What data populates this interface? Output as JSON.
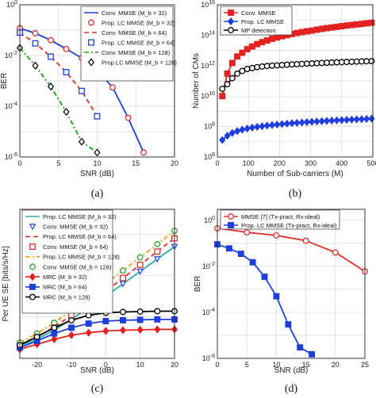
{
  "chart_data": [
    {
      "id": "a",
      "type": "line",
      "caption": "(a)",
      "xlabel": "SNR (dB)",
      "ylabel": "BER",
      "yscale": "log",
      "xlim": [
        0,
        20
      ],
      "ylim": [
        1e-06,
        1
      ],
      "xticks": [
        "0",
        "5",
        "10",
        "15",
        "20"
      ],
      "yticks": [
        "10^-6",
        "10^-4",
        "10^-2",
        "10^0"
      ],
      "grid": true,
      "legend_position": "top-right",
      "series": [
        {
          "name": "Conv. MMSE (M_b = 32)",
          "style": "line",
          "color": "#1f3fdc",
          "x": [
            0,
            2,
            4,
            6,
            8,
            10,
            12,
            14,
            16
          ],
          "y": [
            0.12,
            0.075,
            0.04,
            0.018,
            0.008,
            0.0027,
            0.00055,
            3.5e-05,
            1.5e-06
          ]
        },
        {
          "name": "Prop. LC MMSE (M_b = 32)",
          "style": "marker-circle",
          "color": "#e03030",
          "x": [
            0,
            2,
            4,
            6,
            8,
            10,
            12,
            14,
            16
          ],
          "y": [
            0.12,
            0.075,
            0.04,
            0.018,
            0.008,
            0.0027,
            0.00055,
            3.5e-05,
            1.5e-06
          ]
        },
        {
          "name": "Conv. MMSE (M_b = 64)",
          "style": "dash",
          "color": "#e03030",
          "x": [
            0,
            2,
            4,
            6,
            8,
            10
          ],
          "y": [
            0.08,
            0.03,
            0.009,
            0.0022,
            0.0004,
            4e-05
          ]
        },
        {
          "name": "Prop. LC MMSE (M_b = 64)",
          "style": "marker-square",
          "color": "#1f3fdc",
          "x": [
            0,
            2,
            4,
            6,
            8,
            10
          ],
          "y": [
            0.08,
            0.03,
            0.009,
            0.0022,
            0.0004,
            4e-05
          ]
        },
        {
          "name": "Conv. MMSE (M_b = 128)",
          "style": "dashdot",
          "color": "#1a9e1a",
          "x": [
            0,
            2,
            4,
            6,
            8,
            10
          ],
          "y": [
            0.02,
            0.004,
            0.0006,
            6e-05,
            4e-06,
            1.5e-06
          ]
        },
        {
          "name": "Prop.LC MMSE (M_b = 128)",
          "style": "marker-diamond",
          "color": "#000000",
          "x": [
            0,
            2,
            4,
            6,
            8,
            10
          ],
          "y": [
            0.02,
            0.004,
            0.0006,
            6e-05,
            4e-06,
            1.5e-06
          ]
        }
      ]
    },
    {
      "id": "b",
      "type": "line",
      "caption": "(b)",
      "xlabel": "Number of Sub-carriers (M)",
      "ylabel": "Number of CMs",
      "yscale": "log",
      "xlim": [
        0,
        500
      ],
      "ylim": [
        1000000.0,
        1e+16
      ],
      "xticks": [
        "0",
        "100",
        "200",
        "300",
        "400",
        "500"
      ],
      "yticks": [
        "10^6",
        "10^8",
        "10^10",
        "10^12",
        "10^14",
        "10^16"
      ],
      "grid": true,
      "legend_position": "top-left",
      "series": [
        {
          "name": "Conv. MMSE",
          "style": "line-square",
          "color": "#e32222",
          "x": [
            16,
            32,
            48,
            64,
            80,
            96,
            112,
            128,
            144,
            160,
            176,
            192,
            208,
            224,
            240,
            256,
            272,
            288,
            304,
            320,
            336,
            352,
            368,
            384,
            400,
            416,
            432,
            448,
            464,
            480,
            496
          ],
          "y": [
            10000000000.0,
            300000000000.0,
            1500000000000.0,
            4000000000000.0,
            7000000000000.0,
            12000000000000.0,
            18000000000000.0,
            26000000000000.0,
            35000000000000.0,
            45000000000000.0,
            58000000000000.0,
            70000000000000.0,
            85000000000000.0,
            100000000000000.0,
            120000000000000.0,
            140000000000000.0,
            160000000000000.0,
            180000000000000.0,
            200000000000000.0,
            230000000000000.0,
            260000000000000.0,
            290000000000000.0,
            320000000000000.0,
            350000000000000.0,
            390000000000000.0,
            430000000000000.0,
            470000000000000.0,
            510000000000000.0,
            550000000000000.0,
            600000000000000.0,
            660000000000000.0
          ]
        },
        {
          "name": "Prop. LC MMSE",
          "style": "line-diamond",
          "color": "#1f3fdc",
          "x": [
            16,
            32,
            48,
            64,
            80,
            96,
            112,
            128,
            144,
            160,
            176,
            192,
            208,
            224,
            240,
            256,
            272,
            288,
            304,
            320,
            336,
            352,
            368,
            384,
            400,
            416,
            432,
            448,
            464,
            480,
            496
          ],
          "y": [
            13000000.0,
            25000000.0,
            38000000.0,
            50000000.0,
            62000000.0,
            73000000.0,
            85000000.0,
            95000000.0,
            105000000.0,
            115000000.0,
            125000000.0,
            135000000.0,
            145000000.0,
            155000000.0,
            165000000.0,
            175000000.0,
            185000000.0,
            195000000.0,
            205000000.0,
            215000000.0,
            225000000.0,
            235000000.0,
            245000000.0,
            255000000.0,
            265000000.0,
            275000000.0,
            285000000.0,
            295000000.0,
            305000000.0,
            315000000.0,
            330000000.0
          ]
        },
        {
          "name": "MP detection",
          "style": "line-circle",
          "color": "#000000",
          "x": [
            16,
            32,
            48,
            64,
            80,
            96,
            112,
            128,
            144,
            160,
            176,
            192,
            208,
            224,
            240,
            256,
            272,
            288,
            304,
            320,
            336,
            352,
            368,
            384,
            400,
            416,
            432,
            448,
            464,
            480,
            496
          ],
          "y": [
            30000000000.0,
            60000000000.0,
            150000000000.0,
            300000000000.0,
            450000000000.0,
            600000000000.0,
            700000000000.0,
            800000000000.0,
            880000000000.0,
            950000000000.0,
            1000000000000.0,
            1050000000000.0,
            1100000000000.0,
            1150000000000.0,
            1200000000000.0,
            1250000000000.0,
            1300000000000.0,
            1350000000000.0,
            1400000000000.0,
            1450000000000.0,
            1500000000000.0,
            1550000000000.0,
            1600000000000.0,
            1650000000000.0,
            1700000000000.0,
            1750000000000.0,
            1800000000000.0,
            1850000000000.0,
            1900000000000.0,
            1950000000000.0,
            2000000000000.0
          ]
        }
      ]
    },
    {
      "id": "c",
      "type": "line",
      "caption": "(c)",
      "xlabel": "SNR (dB)",
      "ylabel": "Per UE SE [bits/s/Hz]",
      "yscale": "linear",
      "xlim": [
        -25,
        20
      ],
      "ylim": [
        0,
        18
      ],
      "xticks": [
        "-20",
        "-10",
        "0",
        "10",
        "20"
      ],
      "yticks": [],
      "grid": true,
      "legend_position": "top-left",
      "series": [
        {
          "name": "Prop. LC MMSE (M_b = 32)",
          "style": "line",
          "color": "#2ab0b0",
          "x": [
            -25,
            -20,
            -15,
            -10,
            -5,
            0,
            5,
            10,
            15,
            20
          ],
          "y": [
            1.5,
            2.3,
            3.4,
            4.7,
            6.1,
            7.5,
            9.0,
            10.5,
            12.0,
            13.5
          ]
        },
        {
          "name": "Conv. MMSE (M_b = 32)",
          "style": "marker-triangle-down",
          "color": "#1f3fdc",
          "x": [
            -25,
            -20,
            -15,
            -10,
            -5,
            0,
            5,
            10,
            15,
            20
          ],
          "y": [
            1.5,
            2.3,
            3.4,
            4.7,
            6.1,
            7.5,
            9.0,
            10.5,
            12.0,
            13.5
          ]
        },
        {
          "name": "Prop. LC MMSE (M_b = 64)",
          "style": "dash",
          "color": "#e03030",
          "x": [
            -25,
            -20,
            -15,
            -10,
            -5,
            0,
            5,
            10,
            15,
            20
          ],
          "y": [
            1.7,
            2.6,
            3.8,
            5.2,
            6.6,
            8.1,
            9.7,
            11.3,
            12.9,
            14.5
          ]
        },
        {
          "name": "Conv. MMSE (M_b = 64)",
          "style": "marker-square-open",
          "color": "#e03030",
          "x": [
            -25,
            -20,
            -15,
            -10,
            -5,
            0,
            5,
            10,
            15,
            20
          ],
          "y": [
            1.7,
            2.6,
            3.8,
            5.2,
            6.6,
            8.1,
            9.7,
            11.3,
            12.9,
            14.5
          ]
        },
        {
          "name": "Prop. LC MMSE (M_b = 128)",
          "style": "dashdot",
          "color": "#e8a020",
          "x": [
            -25,
            -20,
            -15,
            -10,
            -5,
            0,
            5,
            10,
            15,
            20
          ],
          "y": [
            1.9,
            3.0,
            4.3,
            5.8,
            7.4,
            9.0,
            10.6,
            12.2,
            13.8,
            15.4
          ]
        },
        {
          "name": "Conv. MMSE (M_b = 128)",
          "style": "marker-circle-open",
          "color": "#2e9e2e",
          "x": [
            -25,
            -20,
            -15,
            -10,
            -5,
            0,
            5,
            10,
            15,
            20
          ],
          "y": [
            1.9,
            3.0,
            4.3,
            5.8,
            7.4,
            9.0,
            10.6,
            12.2,
            13.8,
            15.4
          ]
        },
        {
          "name": "MRC (M_b = 32)",
          "style": "line-diamond",
          "color": "#e32222",
          "x": [
            -25,
            -20,
            -15,
            -10,
            -5,
            0,
            5,
            10,
            15,
            20
          ],
          "y": [
            1.1,
            1.7,
            2.3,
            2.8,
            3.1,
            3.3,
            3.4,
            3.45,
            3.5,
            3.5
          ]
        },
        {
          "name": "MRC (M_b = 64)",
          "style": "line-square",
          "color": "#1f3fdc",
          "x": [
            -25,
            -20,
            -15,
            -10,
            -5,
            0,
            5,
            10,
            15,
            20
          ],
          "y": [
            1.3,
            2.1,
            3.0,
            3.7,
            4.2,
            4.5,
            4.6,
            4.65,
            4.7,
            4.7
          ]
        },
        {
          "name": "MRC (M_b = 128)",
          "style": "line-circle",
          "color": "#000000",
          "x": [
            -25,
            -20,
            -15,
            -10,
            -5,
            0,
            5,
            10,
            15,
            20
          ],
          "y": [
            1.6,
            2.6,
            3.7,
            4.6,
            5.2,
            5.5,
            5.6,
            5.65,
            5.7,
            5.7
          ]
        }
      ]
    },
    {
      "id": "d",
      "type": "line",
      "caption": "(d)",
      "xlabel": "SNR (dB)",
      "ylabel": "BER",
      "yscale": "log",
      "xlim": [
        0,
        25
      ],
      "ylim": [
        1e-06,
        3
      ],
      "xticks": [
        "0",
        "5",
        "10",
        "15",
        "20",
        "25"
      ],
      "yticks": [
        "10^-6",
        "10^-4",
        "10^-2",
        "10^0"
      ],
      "grid": true,
      "legend_position": "top-left",
      "series": [
        {
          "name": "MMSE [7] (Tx-pract, Rx-ideal)",
          "style": "line-circle",
          "color": "#e03030",
          "x": [
            0,
            5,
            10,
            15,
            20,
            25
          ],
          "y": [
            0.45,
            0.3,
            0.22,
            0.13,
            0.04,
            0.006
          ]
        },
        {
          "name": "Prop. LC MMSE (Tx-pract, Rx-ideal)",
          "style": "line-square",
          "color": "#1f3fdc",
          "x": [
            0,
            2,
            4,
            6,
            8,
            10,
            12,
            14,
            16
          ],
          "y": [
            0.09,
            0.06,
            0.035,
            0.015,
            0.0035,
            0.0005,
            3e-05,
            3e-06,
            1.5e-06
          ]
        }
      ]
    }
  ]
}
